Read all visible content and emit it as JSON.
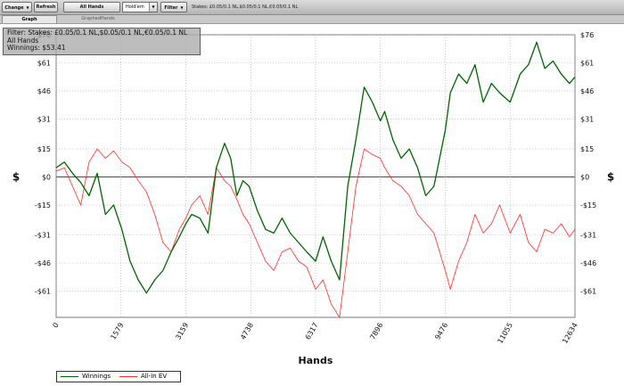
{
  "toolbar": {
    "change_label": "Change",
    "refresh_label": "Refresh",
    "all_hands_label": "All Hands",
    "game_select_value": "Hold'em",
    "filter_label": "Filter",
    "stakes_text": "Stakes: £0.05/0.1 NL,$0.05/0.1 NL,€0.05/0.1 NL"
  },
  "tabs": [
    {
      "label": "Graph"
    },
    {
      "label": "GraphedHands"
    }
  ],
  "filter_box": {
    "line1": "Filter: Stakes: £0.05/0.1 NL,$0.05/0.1 NL,€0.05/0.1 NL",
    "line2": "All Hands",
    "line3": "Winnings: $53.41"
  },
  "legend": [
    {
      "label": "Winnings",
      "color": "#006400"
    },
    {
      "label": "All-In EV",
      "color": "#ff2a2a"
    }
  ],
  "chart_data": {
    "type": "line",
    "xlabel": "Hands",
    "ylabel": "$",
    "xlim": [
      0,
      12634
    ],
    "ylim": [
      -75,
      76
    ],
    "x_ticks": [
      0,
      1579,
      3159,
      4738,
      6317,
      7896,
      9476,
      11055,
      12634
    ],
    "y_ticks": [
      76,
      61,
      46,
      31,
      15,
      0,
      -15,
      -31,
      -46,
      -61
    ],
    "y_tick_labels": [
      "$76",
      "$61",
      "$46",
      "$31",
      "$15",
      "$0",
      "-$15",
      "-$31",
      "-$46",
      "-$61"
    ],
    "grid": true,
    "legend_position": "bottom-left",
    "series": [
      {
        "name": "Winnings",
        "color": "#006400",
        "x": [
          0,
          200,
          400,
          600,
          800,
          1000,
          1200,
          1400,
          1600,
          1800,
          2000,
          2200,
          2400,
          2600,
          2800,
          3000,
          3159,
          3300,
          3500,
          3700,
          3900,
          4100,
          4250,
          4400,
          4550,
          4700,
          4900,
          5100,
          5300,
          5500,
          5700,
          5900,
          6100,
          6317,
          6500,
          6700,
          6900,
          7100,
          7300,
          7500,
          7700,
          7896,
          8000,
          8200,
          8400,
          8600,
          8800,
          9000,
          9200,
          9476,
          9600,
          9800,
          10000,
          10200,
          10400,
          10600,
          10800,
          11055,
          11300,
          11500,
          11700,
          11900,
          12100,
          12300,
          12500,
          12634
        ],
        "values": [
          5,
          8,
          2,
          -3,
          -10,
          2,
          -20,
          -15,
          -28,
          -45,
          -55,
          -62,
          -55,
          -50,
          -40,
          -32,
          -25,
          -20,
          -22,
          -30,
          5,
          18,
          10,
          -10,
          -2,
          -5,
          -18,
          -28,
          -30,
          -22,
          -30,
          -35,
          -40,
          -45,
          -32,
          -45,
          -55,
          -5,
          20,
          48,
          40,
          30,
          35,
          20,
          10,
          15,
          5,
          -10,
          -5,
          25,
          45,
          55,
          50,
          60,
          40,
          50,
          45,
          40,
          55,
          60,
          72,
          58,
          62,
          55,
          50,
          53.41
        ]
      },
      {
        "name": "All-In EV",
        "color": "#ff2a2a",
        "x": [
          0,
          200,
          400,
          600,
          800,
          1000,
          1200,
          1400,
          1600,
          1800,
          2000,
          2200,
          2400,
          2600,
          2800,
          3000,
          3159,
          3300,
          3500,
          3700,
          3900,
          4100,
          4250,
          4400,
          4550,
          4700,
          4900,
          5100,
          5300,
          5500,
          5700,
          5900,
          6100,
          6317,
          6500,
          6700,
          6900,
          7100,
          7300,
          7500,
          7700,
          7896,
          8000,
          8200,
          8400,
          8600,
          8800,
          9000,
          9200,
          9476,
          9600,
          9800,
          10000,
          10200,
          10400,
          10600,
          10800,
          11055,
          11300,
          11500,
          11700,
          11900,
          12100,
          12300,
          12500,
          12634
        ],
        "values": [
          3,
          5,
          -5,
          -15,
          8,
          15,
          10,
          14,
          8,
          5,
          -2,
          -8,
          -20,
          -35,
          -40,
          -28,
          -22,
          -15,
          -10,
          -20,
          5,
          -2,
          -5,
          -12,
          -20,
          -25,
          -35,
          -45,
          -50,
          -40,
          -38,
          -45,
          -48,
          -60,
          -55,
          -68,
          -75,
          -40,
          -5,
          15,
          12,
          10,
          5,
          -2,
          -5,
          -10,
          -20,
          -25,
          -30,
          -50,
          -60,
          -45,
          -35,
          -20,
          -30,
          -25,
          -15,
          -30,
          -20,
          -35,
          -40,
          -28,
          -30,
          -25,
          -32,
          -28
        ]
      }
    ]
  }
}
